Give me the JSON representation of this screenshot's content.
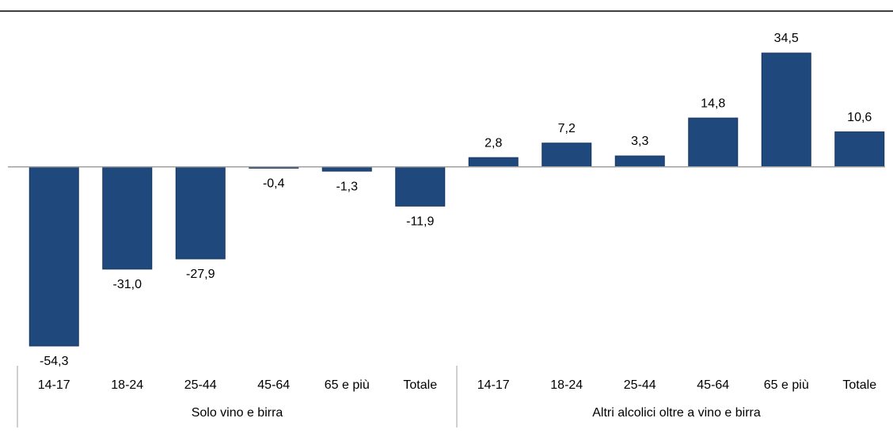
{
  "chart_data": {
    "type": "bar",
    "color": "#1f497d",
    "groups": [
      {
        "name": "Solo vino e birra",
        "categories": [
          "14-17",
          "18-24",
          "25-44",
          "45-64",
          "65 e più",
          "Totale"
        ],
        "values": [
          -54.3,
          -31.0,
          -27.9,
          -0.4,
          -1.3,
          -11.9
        ],
        "value_labels": [
          "-54,3",
          "-31,0",
          "-27,9",
          "-0,4",
          "-1,3",
          "-11,9"
        ]
      },
      {
        "name": "Altri alcolici oltre a vino e birra",
        "categories": [
          "14-17",
          "18-24",
          "25-44",
          "45-64",
          "65 e più",
          "Totale"
        ],
        "values": [
          2.8,
          7.2,
          3.3,
          14.8,
          34.5,
          10.6
        ],
        "value_labels": [
          "2,8",
          "7,2",
          "3,3",
          "14,8",
          "34,5",
          "10,6"
        ]
      }
    ]
  }
}
